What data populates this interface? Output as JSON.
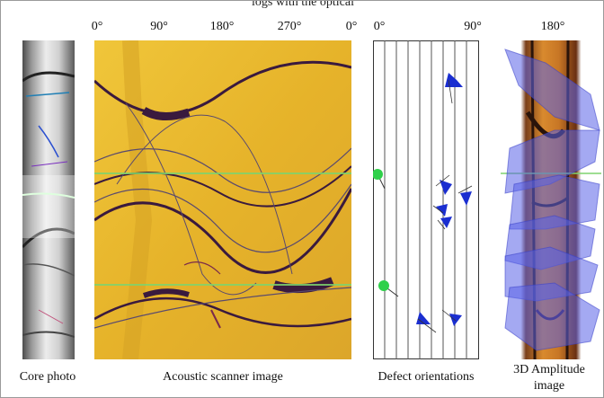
{
  "figure": {
    "top_caption": "logs with the optical",
    "scanner_ticks": [
      "0°",
      "90°",
      "180°",
      "270°",
      "0°"
    ],
    "defect_ticks": [
      "0°",
      "90°"
    ],
    "amplitude_tick": "180°",
    "captions": {
      "core": "Core photo",
      "scanner": "Acoustic scanner image",
      "defects": "Defect orientations",
      "amplitude_line1": "3D Amplitude",
      "amplitude_line2": "image"
    }
  },
  "colors": {
    "scanner_yellow": "#e9b82a",
    "sinusoid_dark": "#3a1a3e",
    "marker_green": "#2fd04a",
    "marker_blue": "#1a2ed0",
    "plane_blue": "#5a63e8"
  }
}
